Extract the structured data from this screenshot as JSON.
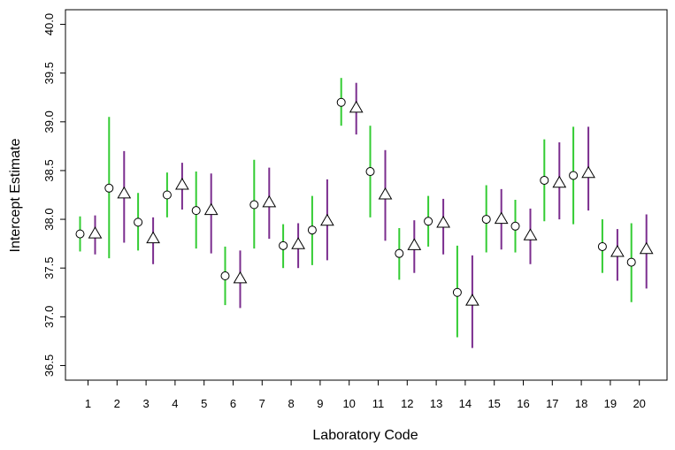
{
  "chart_data": {
    "type": "scatter",
    "xlabel": "Laboratory Code",
    "ylabel": "Intercept Estimate",
    "ylim": [
      36.35,
      40.15
    ],
    "yticks": [
      36.5,
      37.0,
      37.5,
      38.0,
      38.5,
      39.0,
      39.5,
      40.0
    ],
    "ytick_labels": [
      "36.5",
      "37.0",
      "37.5",
      "38.0",
      "38.5",
      "39.0",
      "39.5",
      "40.0"
    ],
    "categories": [
      "1",
      "2",
      "3",
      "4",
      "5",
      "6",
      "7",
      "8",
      "9",
      "10",
      "11",
      "12",
      "13",
      "14",
      "15",
      "16",
      "17",
      "18",
      "19",
      "20"
    ],
    "grid": false,
    "legend": "none",
    "series": [
      {
        "marker": "circle",
        "color": "#33cc33",
        "values": [
          37.85,
          38.32,
          37.97,
          38.25,
          38.09,
          37.42,
          38.15,
          37.73,
          37.89,
          39.2,
          38.49,
          37.65,
          37.98,
          37.25,
          38.0,
          37.93,
          38.4,
          38.45,
          37.72,
          37.56
        ],
        "lower": [
          37.67,
          37.6,
          37.68,
          38.02,
          37.7,
          37.12,
          37.7,
          37.5,
          37.53,
          38.96,
          38.02,
          37.38,
          37.72,
          36.79,
          37.66,
          37.66,
          37.98,
          37.95,
          37.45,
          37.15
        ],
        "upper": [
          38.03,
          39.05,
          38.27,
          38.48,
          38.49,
          37.72,
          38.61,
          37.95,
          38.24,
          39.45,
          38.96,
          37.91,
          38.24,
          37.73,
          38.35,
          38.2,
          38.82,
          38.95,
          38.0,
          37.96
        ]
      },
      {
        "marker": "triangle",
        "color": "#7b2d8e",
        "values": [
          37.85,
          38.26,
          37.8,
          38.35,
          38.09,
          37.39,
          38.17,
          37.74,
          37.98,
          39.14,
          38.25,
          37.73,
          37.96,
          37.16,
          38.0,
          37.83,
          38.37,
          38.47,
          37.66,
          37.69
        ],
        "lower": [
          37.64,
          37.76,
          37.54,
          38.1,
          37.65,
          37.09,
          37.8,
          37.5,
          37.58,
          38.87,
          37.78,
          37.45,
          37.64,
          36.68,
          37.69,
          37.54,
          38.0,
          38.09,
          37.37,
          37.29
        ],
        "upper": [
          38.04,
          38.7,
          38.02,
          38.58,
          38.47,
          37.68,
          38.53,
          37.96,
          38.41,
          39.4,
          38.71,
          37.99,
          38.21,
          37.63,
          38.31,
          38.11,
          38.79,
          38.95,
          37.9,
          38.05
        ]
      }
    ]
  }
}
